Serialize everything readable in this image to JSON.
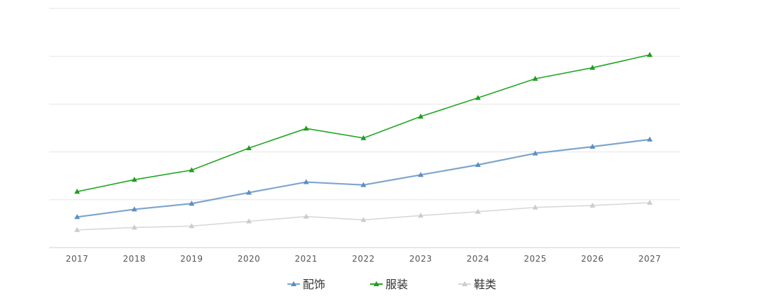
{
  "chart_data": {
    "type": "line",
    "title": "",
    "xlabel": "",
    "ylabel": "",
    "categories": [
      "2017",
      "2018",
      "2019",
      "2020",
      "2021",
      "2022",
      "2023",
      "2024",
      "2025",
      "2026",
      "2027"
    ],
    "ylim": [
      0,
      5
    ],
    "grid": true,
    "y_tick_labels_shown": false,
    "legend_position": "bottom-center",
    "series": [
      {
        "name": "配饰",
        "color": "#7ea6cc",
        "marker_color": "#5b8ec4",
        "marker": "triangle",
        "values": [
          0.64,
          0.8,
          0.92,
          1.15,
          1.37,
          1.31,
          1.52,
          1.73,
          1.97,
          2.11,
          2.26
        ]
      },
      {
        "name": "服装",
        "color": "#22a722",
        "marker_color": "#1f9e1f",
        "marker": "triangle",
        "values": [
          1.17,
          1.42,
          1.62,
          2.08,
          2.49,
          2.29,
          2.74,
          3.13,
          3.53,
          3.76,
          4.03
        ]
      },
      {
        "name": "鞋类",
        "color": "#d8d8d8",
        "marker_color": "#cccccc",
        "marker": "triangle",
        "values": [
          0.37,
          0.42,
          0.45,
          0.55,
          0.65,
          0.58,
          0.67,
          0.75,
          0.84,
          0.88,
          0.94
        ]
      }
    ]
  }
}
